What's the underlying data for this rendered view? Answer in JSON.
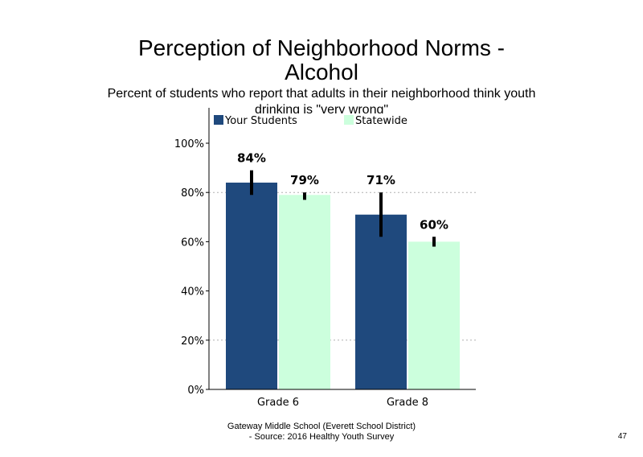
{
  "slide": {
    "title_line1": "Perception of Neighborhood Norms -",
    "title_line2": "Alcohol",
    "subtitle": "Percent of students who report that adults in their neighborhood think youth drinking is \"very wrong\"",
    "footer_line1": "Gateway Middle School (Everett School District)",
    "footer_line2": "- Source: 2016 Healthy  Youth Survey",
    "page_number": "47"
  },
  "colors": {
    "your_students": "#1f497d",
    "statewide": "#ccffdd",
    "error_bar": "#000000",
    "axis": "#000000",
    "gridline": "#b0b0b0"
  },
  "chart_data": {
    "type": "bar",
    "title": "",
    "xlabel": "",
    "ylabel": "",
    "categories": [
      "Grade 6",
      "Grade 8"
    ],
    "series": [
      {
        "name": "Your Students",
        "values": [
          84,
          71
        ],
        "labels": [
          "84%",
          "71%"
        ],
        "error_low": [
          79,
          62
        ],
        "error_high": [
          89,
          80
        ]
      },
      {
        "name": "Statewide",
        "values": [
          79,
          60
        ],
        "labels": [
          "79%",
          "60%"
        ],
        "error_low": [
          77,
          58
        ],
        "error_high": [
          80,
          62
        ]
      }
    ],
    "ylim": [
      0,
      100
    ],
    "yticks": [
      0,
      20,
      40,
      60,
      80,
      100
    ],
    "ytick_labels": [
      "0%",
      "20%",
      "40%",
      "60%",
      "80%",
      "100%"
    ],
    "gridlines": [
      20,
      80
    ],
    "grid_style": "dotted",
    "legend_position": "top"
  }
}
